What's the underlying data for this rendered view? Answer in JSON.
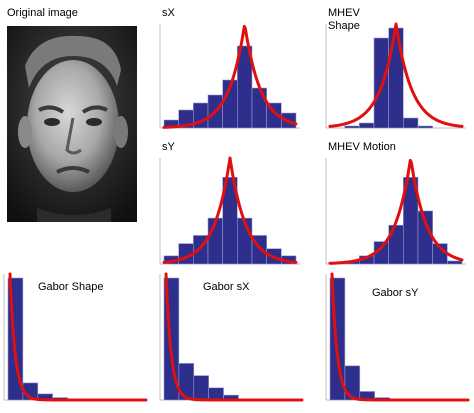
{
  "labels": {
    "original": "Original image",
    "sx": "sX",
    "mhev_shape": "MHEV\nShape",
    "sy": "sY",
    "mhev_motion": "MHEV Motion",
    "gabor_shape": "Gabor  Shape",
    "gabor_sx": "Gabor  sX",
    "gabor_sy": "Gabor  sY"
  },
  "colors": {
    "bar": "#2e2e8c",
    "bar_edge": "#9a9acc",
    "curve": "#e01010",
    "axis": "#bfbfbf"
  },
  "chart_data": [
    {
      "id": "sx",
      "type": "bar",
      "curve": "laplace",
      "values": [
        0.08,
        0.18,
        0.25,
        0.33,
        0.48,
        0.82,
        0.4,
        0.25,
        0.15
      ]
    },
    {
      "id": "mhev_shape",
      "type": "bar",
      "curve": "laplace",
      "values": [
        0.0,
        0.02,
        0.05,
        0.9,
        1.0,
        0.1,
        0.02,
        0.0,
        0.0
      ]
    },
    {
      "id": "sy",
      "type": "bar",
      "curve": "laplace",
      "values": [
        0.08,
        0.2,
        0.28,
        0.45,
        0.85,
        0.45,
        0.28,
        0.15,
        0.08
      ]
    },
    {
      "id": "mhev_motion",
      "type": "bar",
      "curve": "laplace",
      "values": [
        0.0,
        0.03,
        0.08,
        0.22,
        0.38,
        0.85,
        0.52,
        0.2,
        0.03
      ]
    },
    {
      "id": "gabor_shape",
      "type": "bar",
      "curve": "exponential",
      "values": [
        1.0,
        0.14,
        0.05,
        0.02,
        0.01,
        0.0,
        0.0,
        0.0,
        0.0
      ]
    },
    {
      "id": "gabor_sx",
      "type": "bar",
      "curve": "exponential",
      "values": [
        1.0,
        0.3,
        0.2,
        0.1,
        0.04,
        0.0,
        0.0,
        0.0,
        0.0
      ]
    },
    {
      "id": "gabor_sy",
      "type": "bar",
      "curve": "exponential",
      "values": [
        1.0,
        0.28,
        0.07,
        0.02,
        0.0,
        0.0,
        0.0,
        0.0,
        0.0
      ]
    }
  ]
}
